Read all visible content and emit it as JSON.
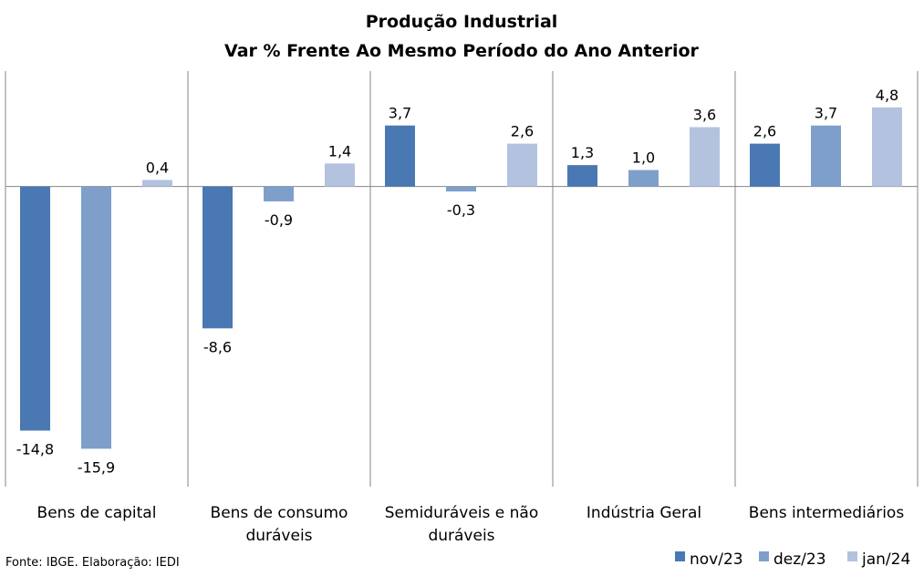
{
  "chart_data": {
    "type": "bar",
    "title": "Produção Industrial",
    "subtitle": "Var % Frente Ao Mesmo Período do Ano Anterior",
    "categories": [
      [
        "Bens de capital"
      ],
      [
        "Bens de consumo",
        "duráveis"
      ],
      [
        "Semiduráveis e não",
        "duráveis"
      ],
      [
        "Indústria Geral"
      ],
      [
        "Bens intermediários"
      ]
    ],
    "series": [
      {
        "name": "nov/23",
        "color": "#4a78b3",
        "values": [
          -14.8,
          -8.6,
          3.7,
          1.3,
          2.6
        ],
        "labels": [
          "-14,8",
          "-8,6",
          "3,7",
          "1,3",
          "2,6"
        ]
      },
      {
        "name": "dez/23",
        "color": "#7f9fcb",
        "values": [
          -15.9,
          -0.9,
          -0.3,
          1.0,
          3.7
        ],
        "labels": [
          "-15,9",
          "-0,9",
          "-0,3",
          "1,0",
          "3,7"
        ]
      },
      {
        "name": "jan/24",
        "color": "#b3c3df",
        "values": [
          0.4,
          1.4,
          2.6,
          3.6,
          4.8
        ],
        "labels": [
          "0,4",
          "1,4",
          "2,6",
          "3,6",
          "4,8"
        ]
      }
    ],
    "ylim": [
      -18.2,
      7.0
    ],
    "grid": false,
    "legend_position": "bottom-right",
    "source": "Fonte: IBGE. Elaboração: IEDI"
  }
}
